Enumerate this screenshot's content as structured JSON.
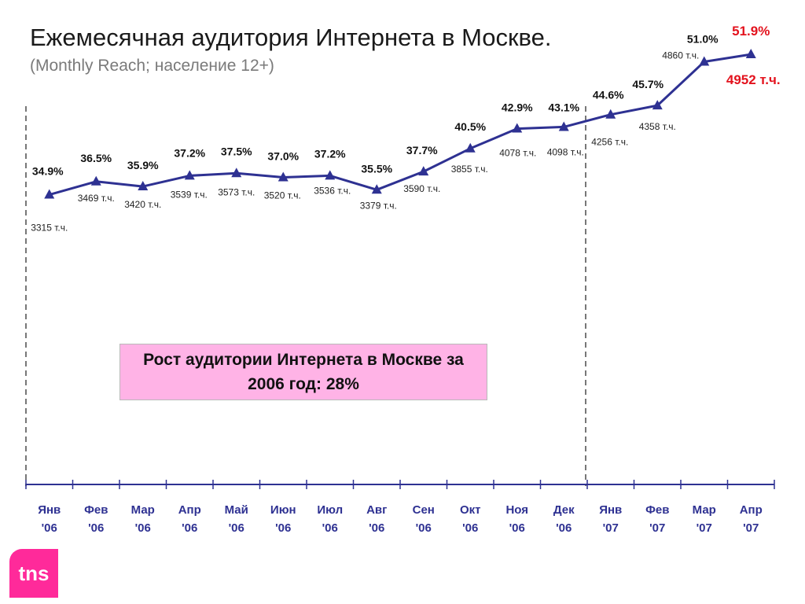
{
  "header": {
    "title": "Ежемесячная аудитория Интернета в Москве.",
    "subtitle": "(Monthly Reach; население 12+)"
  },
  "callout": {
    "text": "Рост аудитории Интернета в Москве за 2006 год: 28%"
  },
  "logo": {
    "text": "tns"
  },
  "colors": {
    "line": "#2e3192",
    "highlight": "#e3121d",
    "callout_bg": "#ffb3e6",
    "axis": "#2e3192",
    "divider": "#777777",
    "logo": "#ff2a9a"
  },
  "chart_data": {
    "type": "line",
    "categories": [
      [
        "Янв",
        "'06"
      ],
      [
        "Фев",
        "'06"
      ],
      [
        "Мар",
        "'06"
      ],
      [
        "Апр",
        "'06"
      ],
      [
        "Май",
        "'06"
      ],
      [
        "Июн",
        "'06"
      ],
      [
        "Июл",
        "'06"
      ],
      [
        "Авг",
        "'06"
      ],
      [
        "Сен",
        "'06"
      ],
      [
        "Окт",
        "'06"
      ],
      [
        "Ноя",
        "'06"
      ],
      [
        "Дек",
        "'06"
      ],
      [
        "Янв",
        "'07"
      ],
      [
        "Фев",
        "'07"
      ],
      [
        "Мар",
        "'07"
      ],
      [
        "Апр",
        "'07"
      ]
    ],
    "reach_percent": [
      34.9,
      36.5,
      35.9,
      37.2,
      37.5,
      37.0,
      37.2,
      35.5,
      37.7,
      40.5,
      42.9,
      43.1,
      44.6,
      45.7,
      51.0,
      51.9
    ],
    "reach_labels": [
      "34.9%",
      "36.5%",
      "35.9%",
      "37.2%",
      "37.5%",
      "37.0%",
      "37.2%",
      "35.5%",
      "37.7%",
      "40.5%",
      "42.9%",
      "43.1%",
      "44.6%",
      "45.7%",
      "51.0%",
      "51.9%"
    ],
    "audience_thousands": [
      3315,
      3469,
      3420,
      3539,
      3573,
      3520,
      3536,
      3379,
      3590,
      3855,
      4078,
      4098,
      4256,
      4358,
      4860,
      4952
    ],
    "audience_labels": [
      "3315 т.ч.",
      "3469 т.ч.",
      "3420 т.ч.",
      "3539 т.ч.",
      "3573 т.ч.",
      "3520 т.ч.",
      "3536 т.ч.",
      "3379 т.ч.",
      "3590 т.ч.",
      "3855 т.ч.",
      "4078 т.ч.",
      "4098 т.ч.",
      "4256 т.ч.",
      "4358 т.ч.",
      "4860 т.ч.",
      "4952 т.ч."
    ],
    "highlighted_index": 15,
    "legend": "none",
    "grid": false,
    "xlabel": "",
    "ylabel": ""
  }
}
